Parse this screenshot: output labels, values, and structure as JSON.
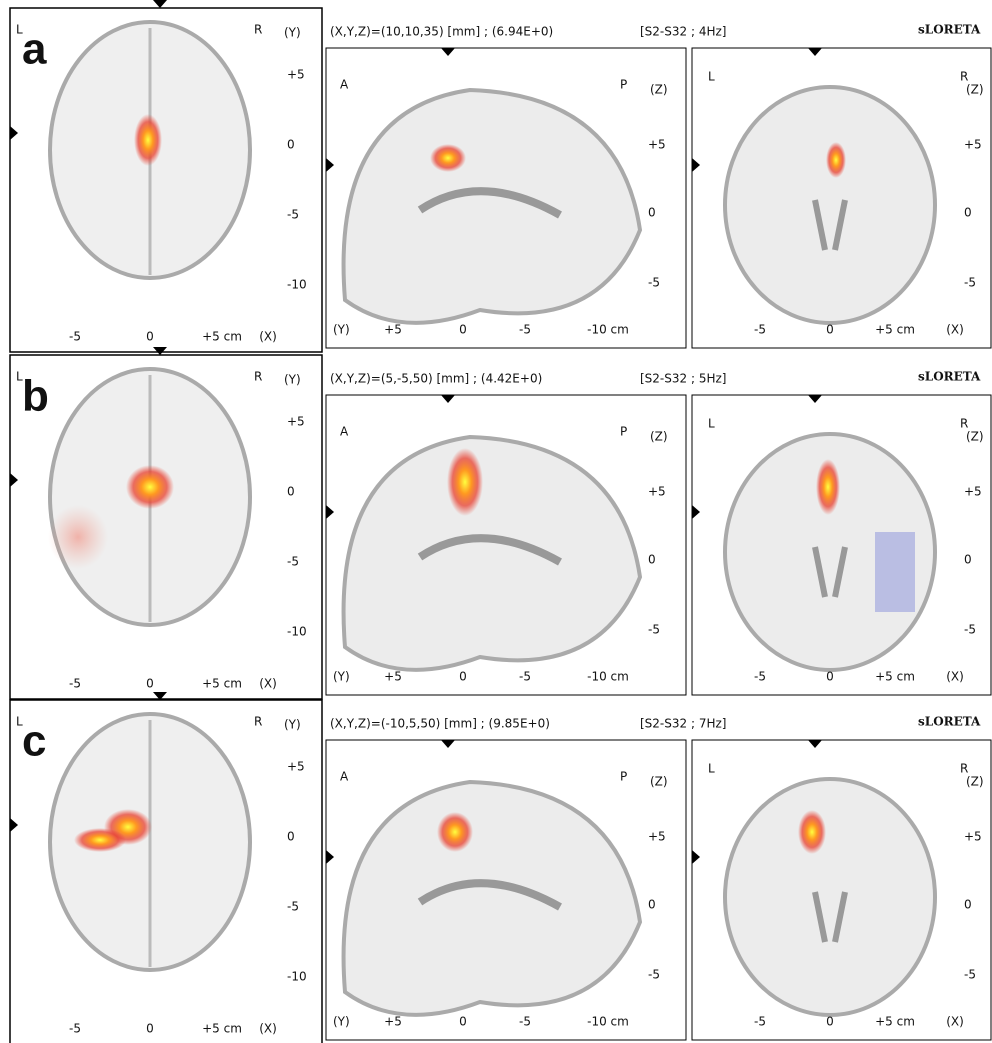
{
  "rows": [
    {
      "panel_label": "a",
      "coords": "(X,Y,Z)=(10,10,35) [mm] ; (6.94E+0)",
      "condition": "[S2-S32 ; 4Hz]",
      "software": "sLORETA",
      "axial": {
        "left": "L",
        "right": "R",
        "axis_y": "(Y)",
        "y_ticks": [
          "+5",
          "0",
          "-5",
          "-10"
        ],
        "x_ticks": [
          "-5",
          "0",
          "+5 cm",
          "(X)"
        ]
      },
      "sagittal": {
        "left": "A",
        "right": "P",
        "axis_z": "(Z)",
        "z_ticks": [
          "+5",
          "0",
          "-5"
        ],
        "axis_y": "(Y)",
        "y_ticks": [
          "+5",
          "0",
          "-5",
          "-10 cm"
        ]
      },
      "coronal": {
        "left": "L",
        "right": "R",
        "axis_z": "(Z)",
        "z_ticks": [
          "+5",
          "0",
          "-5"
        ],
        "x_ticks": [
          "-5",
          "0",
          "+5 cm",
          "(X)"
        ]
      }
    },
    {
      "panel_label": "b",
      "coords": "(X,Y,Z)=(5,-5,50) [mm] ; (4.42E+0)",
      "condition": "[S2-S32 ; 5Hz]",
      "software": "sLORETA",
      "axial": {
        "left": "L",
        "right": "R",
        "axis_y": "(Y)",
        "y_ticks": [
          "+5",
          "0",
          "-5",
          "-10"
        ],
        "x_ticks": [
          "-5",
          "0",
          "+5 cm",
          "(X)"
        ]
      },
      "sagittal": {
        "left": "A",
        "right": "P",
        "axis_z": "(Z)",
        "z_ticks": [
          "+5",
          "0",
          "-5"
        ],
        "axis_y": "(Y)",
        "y_ticks": [
          "+5",
          "0",
          "-5",
          "-10 cm"
        ]
      },
      "coronal": {
        "left": "L",
        "right": "R",
        "axis_z": "(Z)",
        "z_ticks": [
          "+5",
          "0",
          "-5"
        ],
        "x_ticks": [
          "-5",
          "0",
          "+5 cm",
          "(X)"
        ]
      }
    },
    {
      "panel_label": "c",
      "coords": "(X,Y,Z)=(-10,5,50) [mm] ; (9.85E+0)",
      "condition": "[S2-S32 ; 7Hz]",
      "software": "sLORETA",
      "axial": {
        "left": "L",
        "right": "R",
        "axis_y": "(Y)",
        "y_ticks": [
          "+5",
          "0",
          "-5",
          "-10"
        ],
        "x_ticks": [
          "-5",
          "0",
          "+5 cm",
          "(X)"
        ]
      },
      "sagittal": {
        "left": "A",
        "right": "P",
        "axis_z": "(Z)",
        "z_ticks": [
          "+5",
          "0",
          "-5"
        ],
        "axis_y": "(Y)",
        "y_ticks": [
          "+5",
          "0",
          "-5",
          "-10 cm"
        ]
      },
      "coronal": {
        "left": "L",
        "right": "R",
        "axis_z": "(Z)",
        "z_ticks": [
          "+5",
          "0",
          "-5"
        ],
        "x_ticks": [
          "-5",
          "0",
          "+5 cm",
          "(X)"
        ]
      }
    }
  ]
}
